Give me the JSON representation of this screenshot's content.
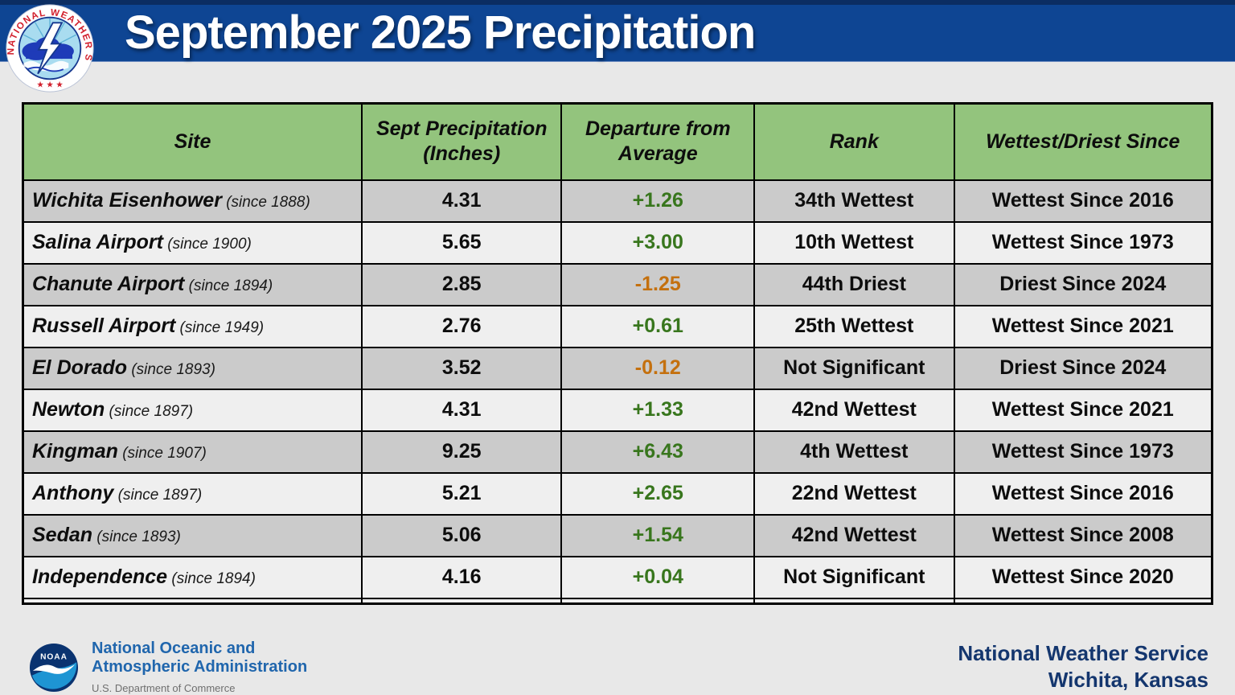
{
  "header": {
    "title": "September 2025 Precipitation",
    "nws_logo_text": "NATIONAL WEATHER SERVICE",
    "nws_logo_stars": "★ ★ ★"
  },
  "table": {
    "columns": [
      "Site",
      "Sept Precipitation (Inches)",
      "Departure from Average",
      "Rank",
      "Wettest/Driest Since"
    ],
    "rows": [
      {
        "site": "Wichita Eisenhower",
        "since": "(since 1888)",
        "precip": "4.31",
        "departure": "+1.26",
        "rank": "34th Wettest",
        "record": "Wettest Since 2016"
      },
      {
        "site": "Salina Airport",
        "since": "(since 1900)",
        "precip": "5.65",
        "departure": "+3.00",
        "rank": "10th Wettest",
        "record": "Wettest Since 1973"
      },
      {
        "site": "Chanute Airport",
        "since": "(since 1894)",
        "precip": "2.85",
        "departure": "-1.25",
        "rank": "44th Driest",
        "record": "Driest Since 2024"
      },
      {
        "site": "Russell Airport",
        "since": "(since 1949)",
        "precip": "2.76",
        "departure": "+0.61",
        "rank": "25th Wettest",
        "record": "Wettest Since 2021"
      },
      {
        "site": "El Dorado",
        "since": "(since 1893)",
        "precip": "3.52",
        "departure": "-0.12",
        "rank": "Not Significant",
        "record": "Driest Since 2024"
      },
      {
        "site": "Newton",
        "since": "(since 1897)",
        "precip": "4.31",
        "departure": "+1.33",
        "rank": "42nd Wettest",
        "record": "Wettest Since 2021"
      },
      {
        "site": "Kingman",
        "since": "(since 1907)",
        "precip": "9.25",
        "departure": "+6.43",
        "rank": "4th Wettest",
        "record": "Wettest Since 1973"
      },
      {
        "site": "Anthony",
        "since": "(since 1897)",
        "precip": "5.21",
        "departure": "+2.65",
        "rank": "22nd Wettest",
        "record": "Wettest Since 2016"
      },
      {
        "site": "Sedan",
        "since": "(since 1893)",
        "precip": "5.06",
        "departure": "+1.54",
        "rank": "42nd Wettest",
        "record": "Wettest Since 2008"
      },
      {
        "site": "Independence",
        "since": "(since 1894)",
        "precip": "4.16",
        "departure": "+0.04",
        "rank": "Not Significant",
        "record": "Wettest Since 2020"
      }
    ]
  },
  "footer": {
    "noaa_logo_text": "NOAA",
    "noaa_line1": "National Oceanic and",
    "noaa_line2": "Atmospheric Administration",
    "noaa_dept": "U.S. Department of Commerce",
    "nws_office_line1": "National Weather Service",
    "nws_office_line2": "Wichita, Kansas"
  },
  "colors": {
    "title_band": "#0e4593",
    "table_header_bg": "#93c47d",
    "row_dark": "#cbcbcb",
    "row_light": "#efefef",
    "departure_positive": "#38761d",
    "departure_negative": "#c4700e",
    "footer_text_navy": "#14366e"
  }
}
